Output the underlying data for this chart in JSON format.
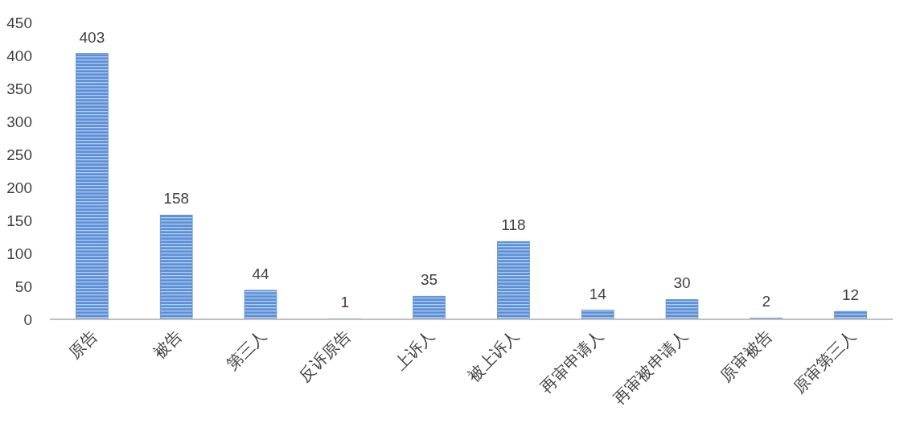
{
  "chart_data": {
    "type": "bar",
    "categories": [
      "原告",
      "被告",
      "第三人",
      "反诉原告",
      "上诉人",
      "被上诉人",
      "再审申请人",
      "再审被申请人",
      "原审被告",
      "原审第三人"
    ],
    "values": [
      403,
      158,
      44,
      1,
      35,
      118,
      14,
      30,
      2,
      12
    ],
    "color": "#5b8fd6",
    "ylim": [
      0,
      450
    ],
    "yticks": [
      0,
      50,
      100,
      150,
      200,
      250,
      300,
      350,
      400,
      450
    ],
    "grid": false,
    "data_labels": true
  }
}
